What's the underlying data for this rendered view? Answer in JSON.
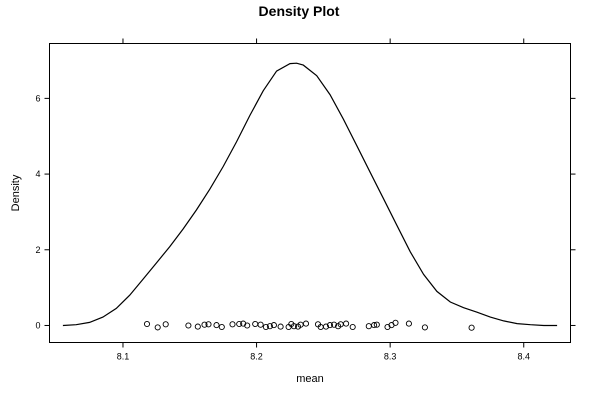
{
  "chart_data": {
    "type": "line",
    "title": "Density Plot",
    "xlabel": "mean",
    "ylabel": "Density",
    "xlim": [
      8.045,
      8.435
    ],
    "ylim": [
      -0.45,
      7.45
    ],
    "x_ticks": [
      8.1,
      8.2,
      8.3,
      8.4
    ],
    "x_tick_labels": [
      "8.1",
      "8.2",
      "8.3",
      "8.4"
    ],
    "y_ticks": [
      0,
      2,
      4,
      6
    ],
    "y_tick_labels": [
      "0",
      "2",
      "4",
      "6"
    ],
    "grid": false,
    "legend": "none",
    "series": [
      {
        "x": [
          8.055,
          8.065,
          8.075,
          8.085,
          8.095,
          8.105,
          8.115,
          8.125,
          8.135,
          8.145,
          8.155,
          8.165,
          8.175,
          8.185,
          8.195,
          8.205,
          8.215,
          8.225,
          8.23,
          8.235,
          8.245,
          8.255,
          8.265,
          8.275,
          8.285,
          8.295,
          8.305,
          8.315,
          8.325,
          8.335,
          8.345,
          8.355,
          8.365,
          8.375,
          8.385,
          8.395,
          8.405,
          8.415,
          8.425
        ],
        "y": [
          0.0,
          0.02,
          0.08,
          0.22,
          0.45,
          0.8,
          1.22,
          1.65,
          2.08,
          2.55,
          3.05,
          3.6,
          4.2,
          4.85,
          5.55,
          6.2,
          6.72,
          6.92,
          6.93,
          6.88,
          6.6,
          6.1,
          5.45,
          4.75,
          4.05,
          3.35,
          2.65,
          1.95,
          1.35,
          0.9,
          0.62,
          0.47,
          0.35,
          0.22,
          0.12,
          0.05,
          0.02,
          0.0,
          0.0
        ]
      }
    ],
    "points": [
      {
        "x": 8.118,
        "y": 0.04
      },
      {
        "x": 8.126,
        "y": -0.05
      },
      {
        "x": 8.132,
        "y": 0.03
      },
      {
        "x": 8.149,
        "y": 0.0
      },
      {
        "x": 8.156,
        "y": -0.03
      },
      {
        "x": 8.161,
        "y": 0.02
      },
      {
        "x": 8.164,
        "y": 0.03
      },
      {
        "x": 8.17,
        "y": 0.01
      },
      {
        "x": 8.174,
        "y": -0.04
      },
      {
        "x": 8.182,
        "y": 0.03
      },
      {
        "x": 8.187,
        "y": 0.04
      },
      {
        "x": 8.19,
        "y": 0.05
      },
      {
        "x": 8.193,
        "y": 0.0
      },
      {
        "x": 8.199,
        "y": 0.04
      },
      {
        "x": 8.203,
        "y": 0.02
      },
      {
        "x": 8.207,
        "y": -0.04
      },
      {
        "x": 8.21,
        "y": -0.02
      },
      {
        "x": 8.213,
        "y": 0.01
      },
      {
        "x": 8.218,
        "y": -0.03
      },
      {
        "x": 8.224,
        "y": -0.04
      },
      {
        "x": 8.226,
        "y": 0.04
      },
      {
        "x": 8.228,
        "y": -0.02
      },
      {
        "x": 8.231,
        "y": -0.03
      },
      {
        "x": 8.233,
        "y": 0.02
      },
      {
        "x": 8.237,
        "y": 0.05
      },
      {
        "x": 8.246,
        "y": 0.03
      },
      {
        "x": 8.248,
        "y": -0.04
      },
      {
        "x": 8.252,
        "y": -0.03
      },
      {
        "x": 8.255,
        "y": 0.01
      },
      {
        "x": 8.258,
        "y": 0.02
      },
      {
        "x": 8.261,
        "y": -0.02
      },
      {
        "x": 8.263,
        "y": 0.03
      },
      {
        "x": 8.267,
        "y": 0.05
      },
      {
        "x": 8.272,
        "y": -0.04
      },
      {
        "x": 8.284,
        "y": -0.02
      },
      {
        "x": 8.288,
        "y": 0.01
      },
      {
        "x": 8.29,
        "y": 0.02
      },
      {
        "x": 8.298,
        "y": -0.04
      },
      {
        "x": 8.301,
        "y": 0.01
      },
      {
        "x": 8.304,
        "y": 0.07
      },
      {
        "x": 8.314,
        "y": 0.05
      },
      {
        "x": 8.326,
        "y": -0.05
      },
      {
        "x": 8.361,
        "y": -0.06
      }
    ]
  }
}
